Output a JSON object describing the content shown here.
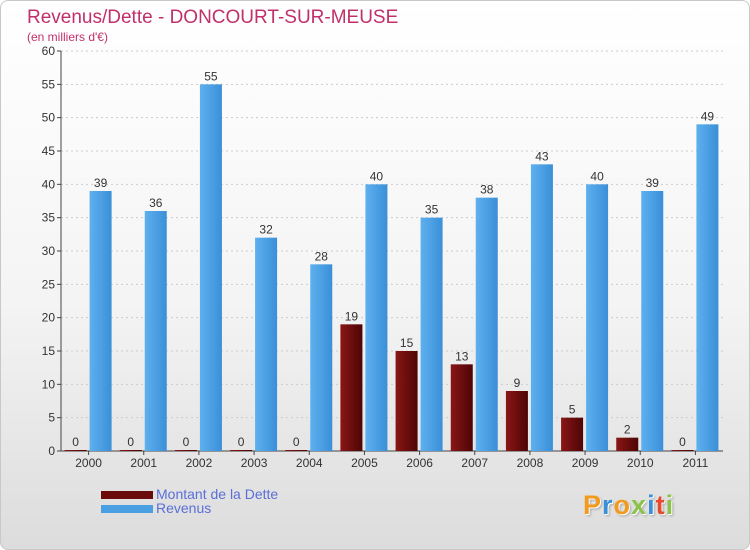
{
  "title": "Revenus/Dette - DONCOURT-SUR-MEUSE",
  "subtitle": "(en milliers d'€)",
  "chart_data": {
    "type": "bar",
    "categories": [
      "2000",
      "2001",
      "2002",
      "2003",
      "2004",
      "2005",
      "2006",
      "2007",
      "2008",
      "2009",
      "2010",
      "2011"
    ],
    "series": [
      {
        "name": "Montant de la Dette",
        "color": "#6b0a0a",
        "values": [
          0,
          0,
          0,
          0,
          0,
          19,
          15,
          13,
          9,
          5,
          2,
          0
        ]
      },
      {
        "name": "Revenus",
        "color": "#4a9fe3",
        "values": [
          39,
          36,
          55,
          32,
          28,
          40,
          35,
          38,
          43,
          40,
          39,
          49
        ]
      }
    ],
    "ylim": [
      0,
      60
    ],
    "yticks": [
      0,
      5,
      10,
      15,
      20,
      25,
      30,
      35,
      40,
      45,
      50,
      55,
      60
    ],
    "grid": true,
    "legend": "bottom-left"
  },
  "legend": [
    {
      "label": "Montant de la Dette",
      "color": "#6b0a0a"
    },
    {
      "label": "Revenus",
      "color": "#4a9fe3"
    }
  ],
  "logo": {
    "text": "Proxiti",
    "letter_colors": [
      "#f29a1e",
      "#3b8fd6",
      "#f29a1e",
      "#8bc34a",
      "#3b8fd6",
      "#e64a2e",
      "#8bc34a"
    ]
  }
}
